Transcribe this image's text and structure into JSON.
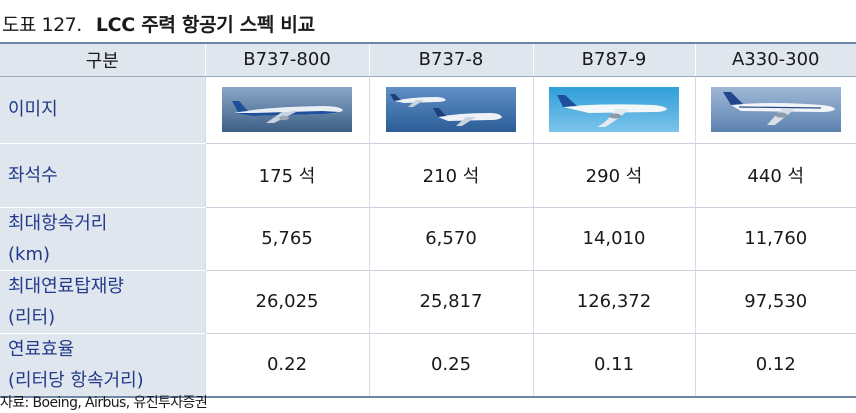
{
  "title": {
    "number": "도표 127.",
    "text": "LCC 주력 항공기 스펙 비교"
  },
  "table": {
    "header": [
      "구분",
      "B737-800",
      "B737-8",
      "B787-9",
      "A330-300"
    ],
    "rows": [
      {
        "label": "이미지",
        "images": [
          "boeing-737-800-photo",
          "boeing-737-8-photo",
          "boeing-787-9-photo",
          "airbus-a330-300-photo"
        ]
      },
      {
        "label": "좌석수",
        "values": [
          "175 석",
          "210 석",
          "290 석",
          "440 석"
        ]
      },
      {
        "label": "최대항속거리\n(km)",
        "values": [
          "5,765",
          "6,570",
          "14,010",
          "11,760"
        ]
      },
      {
        "label": "최대연료탑재량\n(리터)",
        "values": [
          "26,025",
          "25,817",
          "126,372",
          "97,530"
        ]
      },
      {
        "label": "연료효율\n(리터당 항속거리)",
        "values": [
          "0.22",
          "0.25",
          "0.11",
          "0.12"
        ]
      }
    ]
  },
  "source": "자료: Boeing, Airbus, 유진투자증권",
  "colors": {
    "header_bg": "#dfe6ee",
    "label_text": "#233a8a",
    "rule": "#6f86a4"
  }
}
